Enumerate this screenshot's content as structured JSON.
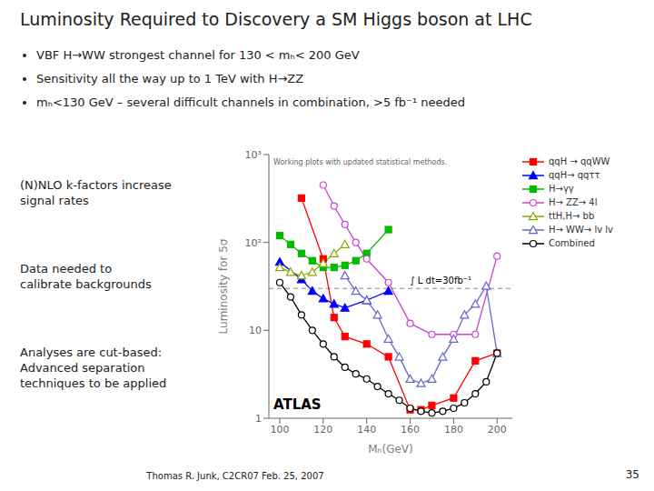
{
  "chart_data": {
    "type": "line",
    "title": "Luminosity Required to Discovery a SM Higgs boson at LHC",
    "bullets": [
      "VBF H→WW strongest channel for 130 < mₕ< 200 GeV",
      "Sensitivity all the way up to 1 TeV  with H→ZZ",
      "mₕ<130 GeV  – several difficult channels in combination, >5 fb⁻¹ needed"
    ],
    "annotations": [
      "(N)NLO k-factors increase\nsignal rates",
      "Data needed to\ncalibrate backgrounds",
      "Analyses are cut-based:\nAdvanced separation\ntechniques to be applied"
    ],
    "plot_annotations": [
      "Working plots with updated statistical methods.",
      "ATLAS"
    ],
    "footer": "Thomas R. Junk, C2CR07 Feb. 25, 2007",
    "page_number": "35",
    "x_label": "Mₕ(GeV)",
    "y_label": "Luminosity for 5σ",
    "log": "y",
    "xlim": [
      95,
      207
    ],
    "xticks": [
      100,
      120,
      140,
      160,
      180,
      200
    ],
    "ylim": [
      1,
      1000
    ],
    "yticks": [
      1,
      10,
      {
        "value": 100,
        "label": "10²"
      },
      {
        "value": 1000,
        "label": "10³"
      }
    ],
    "grid": false,
    "legend": "upper right",
    "reference_lines": [
      {
        "y": 30,
        "line_style": "dashed",
        "label": "∫ L dt=30fb⁻¹"
      }
    ],
    "series": [
      {
        "name": "qqH → qqWW",
        "color": "#FF0000",
        "marker": "filled_square",
        "x": [
          110,
          120,
          125,
          130,
          140,
          150,
          160,
          165,
          170,
          180,
          190,
          200
        ],
        "values": [
          320,
          65,
          14,
          8.5,
          7,
          5,
          1.25,
          1.25,
          1.4,
          1.7,
          4.5,
          5.5
        ]
      },
      {
        "name": "qqH→ qqττ",
        "color": "#0000FF",
        "marker": "filled_triangle",
        "x": [
          100,
          110,
          115,
          120,
          125,
          130,
          140,
          150
        ],
        "values": [
          60,
          38,
          28,
          23,
          20,
          18,
          22,
          28
        ]
      },
      {
        "name": "H→γγ",
        "color": "#00BB00",
        "marker": "filled_square",
        "x": [
          100,
          105,
          110,
          115,
          120,
          125,
          130,
          135,
          140,
          150
        ],
        "values": [
          120,
          95,
          75,
          62,
          52,
          52,
          55,
          62,
          75,
          140
        ]
      },
      {
        "name": "H→ ZZ→ 4l",
        "color": "#CC44CC",
        "marker": "open_circle",
        "x": [
          120,
          125,
          130,
          135,
          140,
          150,
          160,
          170,
          180,
          190,
          200
        ],
        "values": [
          450,
          260,
          160,
          100,
          65,
          35,
          12,
          9,
          9,
          9,
          70
        ]
      },
      {
        "name": "ttH,H→ bb",
        "color": "#88AA00",
        "marker": "open_triangle",
        "x": [
          100,
          105,
          110,
          115,
          120,
          125,
          130
        ],
        "values": [
          52,
          46,
          42,
          46,
          58,
          75,
          95
        ]
      },
      {
        "name": "H→ WW→ lv lv",
        "color": "#6666CC",
        "marker": "open_triangle",
        "x": [
          130,
          135,
          140,
          145,
          150,
          155,
          160,
          165,
          170,
          175,
          180,
          185,
          190,
          195,
          200
        ],
        "values": [
          42,
          28,
          22,
          15,
          8,
          5,
          2.8,
          2.5,
          2.8,
          5,
          8,
          15,
          20,
          32,
          5.5
        ]
      },
      {
        "name": "Combined",
        "color": "#000000",
        "marker": "open_circle",
        "x": [
          100,
          105,
          110,
          115,
          120,
          125,
          130,
          135,
          140,
          145,
          150,
          155,
          160,
          165,
          170,
          175,
          180,
          185,
          190,
          195,
          200
        ],
        "values": [
          35,
          24,
          15,
          10,
          7,
          5,
          3.8,
          3.2,
          2.8,
          2.3,
          1.9,
          1.6,
          1.3,
          1.2,
          1.15,
          1.2,
          1.3,
          1.5,
          1.9,
          2.6,
          5.5
        ]
      }
    ]
  }
}
